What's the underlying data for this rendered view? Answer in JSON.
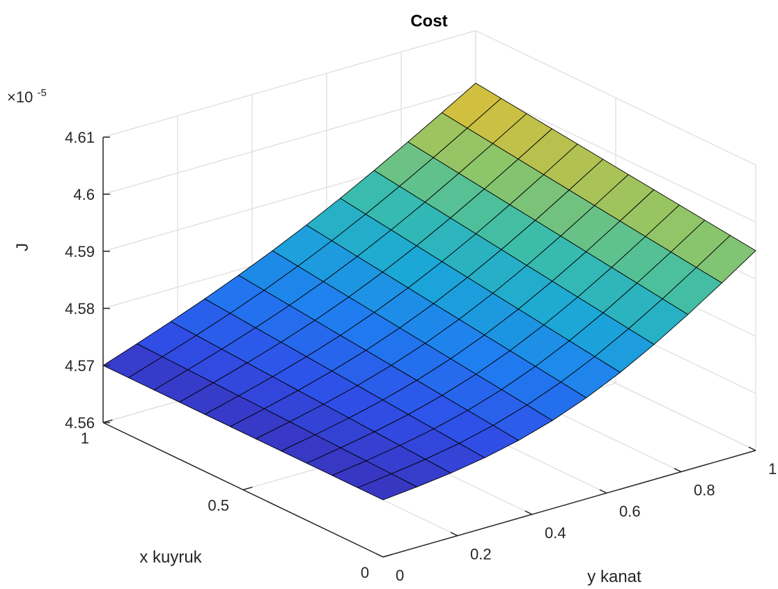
{
  "chart_data": {
    "type": "surface",
    "title": "Cost",
    "xlabel": "x kuyruk",
    "ylabel": "y kanat",
    "zlabel": "J",
    "z_exponent_label": "×10",
    "z_exponent_power": "-5",
    "xlim": [
      0,
      1
    ],
    "ylim": [
      0,
      1
    ],
    "zlim": [
      4.56,
      4.61
    ],
    "x_ticks": [
      0,
      0.5,
      1
    ],
    "x_tick_labels": [
      "0",
      "0.5",
      "1"
    ],
    "y_ticks": [
      0,
      0.2,
      0.4,
      0.6,
      0.8,
      1
    ],
    "y_tick_labels": [
      "0",
      "0.2",
      "0.4",
      "0.6",
      "0.8",
      "1"
    ],
    "z_ticks": [
      4.56,
      4.57,
      4.58,
      4.59,
      4.6,
      4.61
    ],
    "z_tick_labels": [
      "4.56",
      "4.57",
      "4.58",
      "4.59",
      "4.6",
      "4.61"
    ],
    "grid": true,
    "colormap": "parula",
    "corner_values": [
      {
        "x": 0,
        "y": 0,
        "J": 4.57
      },
      {
        "x": 1,
        "y": 0,
        "J": 4.57
      },
      {
        "x": 0,
        "y": 1,
        "J": 4.595
      },
      {
        "x": 1,
        "y": 1,
        "J": 4.6008
      }
    ],
    "grid_samples": 11
  },
  "colors": {
    "axes": "#262626",
    "grid": "#dcdcdc",
    "title": "#000000",
    "cmap_stops": [
      "#3e26a8",
      "#2f4fe8",
      "#1f7ef0",
      "#1ca8d6",
      "#3bbdaa",
      "#8cc56a",
      "#d8bf3b",
      "#f9e21e"
    ]
  }
}
